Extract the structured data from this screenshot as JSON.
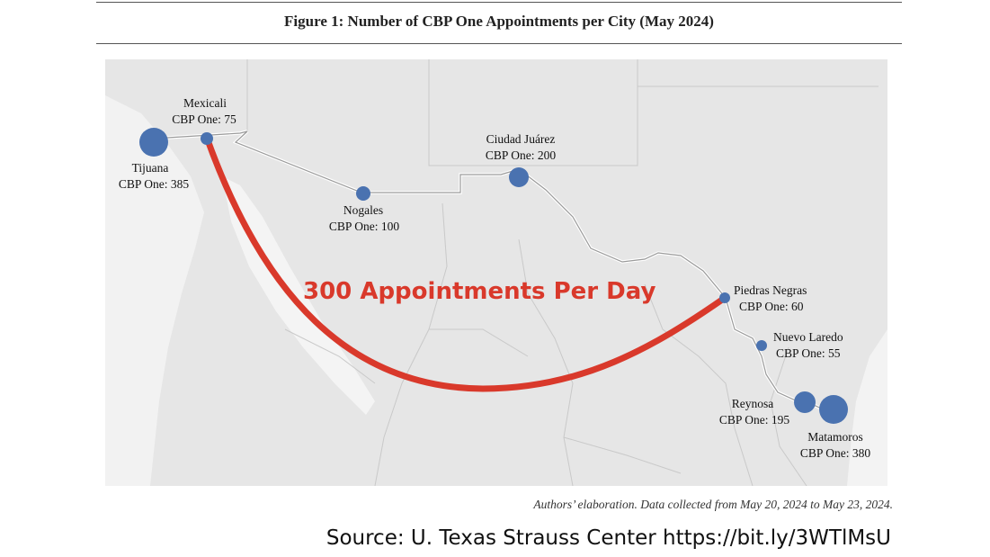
{
  "figure": {
    "title": "Figure 1: Number of CBP One Appointments per City (May 2024)"
  },
  "map": {
    "route_label": "300 Appointments Per Day",
    "route_color": "#d9392b",
    "marker_color": "#4a72b0",
    "cities": [
      {
        "name": "Tijuana",
        "value_text": "CBP One: 385",
        "appointments": 385
      },
      {
        "name": "Mexicali",
        "value_text": "CBP One: 75",
        "appointments": 75
      },
      {
        "name": "Nogales",
        "value_text": "CBP One: 100",
        "appointments": 100
      },
      {
        "name": "Ciudad Juárez",
        "value_text": "CBP One: 200",
        "appointments": 200
      },
      {
        "name": "Piedras Negras",
        "value_text": "CBP One: 60",
        "appointments": 60
      },
      {
        "name": "Nuevo Laredo",
        "value_text": "CBP One: 55",
        "appointments": 55
      },
      {
        "name": "Reynosa",
        "value_text": "CBP One: 195",
        "appointments": 195
      },
      {
        "name": "Matamoros",
        "value_text": "CBP One: 380",
        "appointments": 380
      }
    ]
  },
  "caption": "Authors’ elaboration. Data collected from May 20, 2024 to May 23, 2024.",
  "source": "Source: U. Texas Strauss Center https://bit.ly/3WTlMsU"
}
